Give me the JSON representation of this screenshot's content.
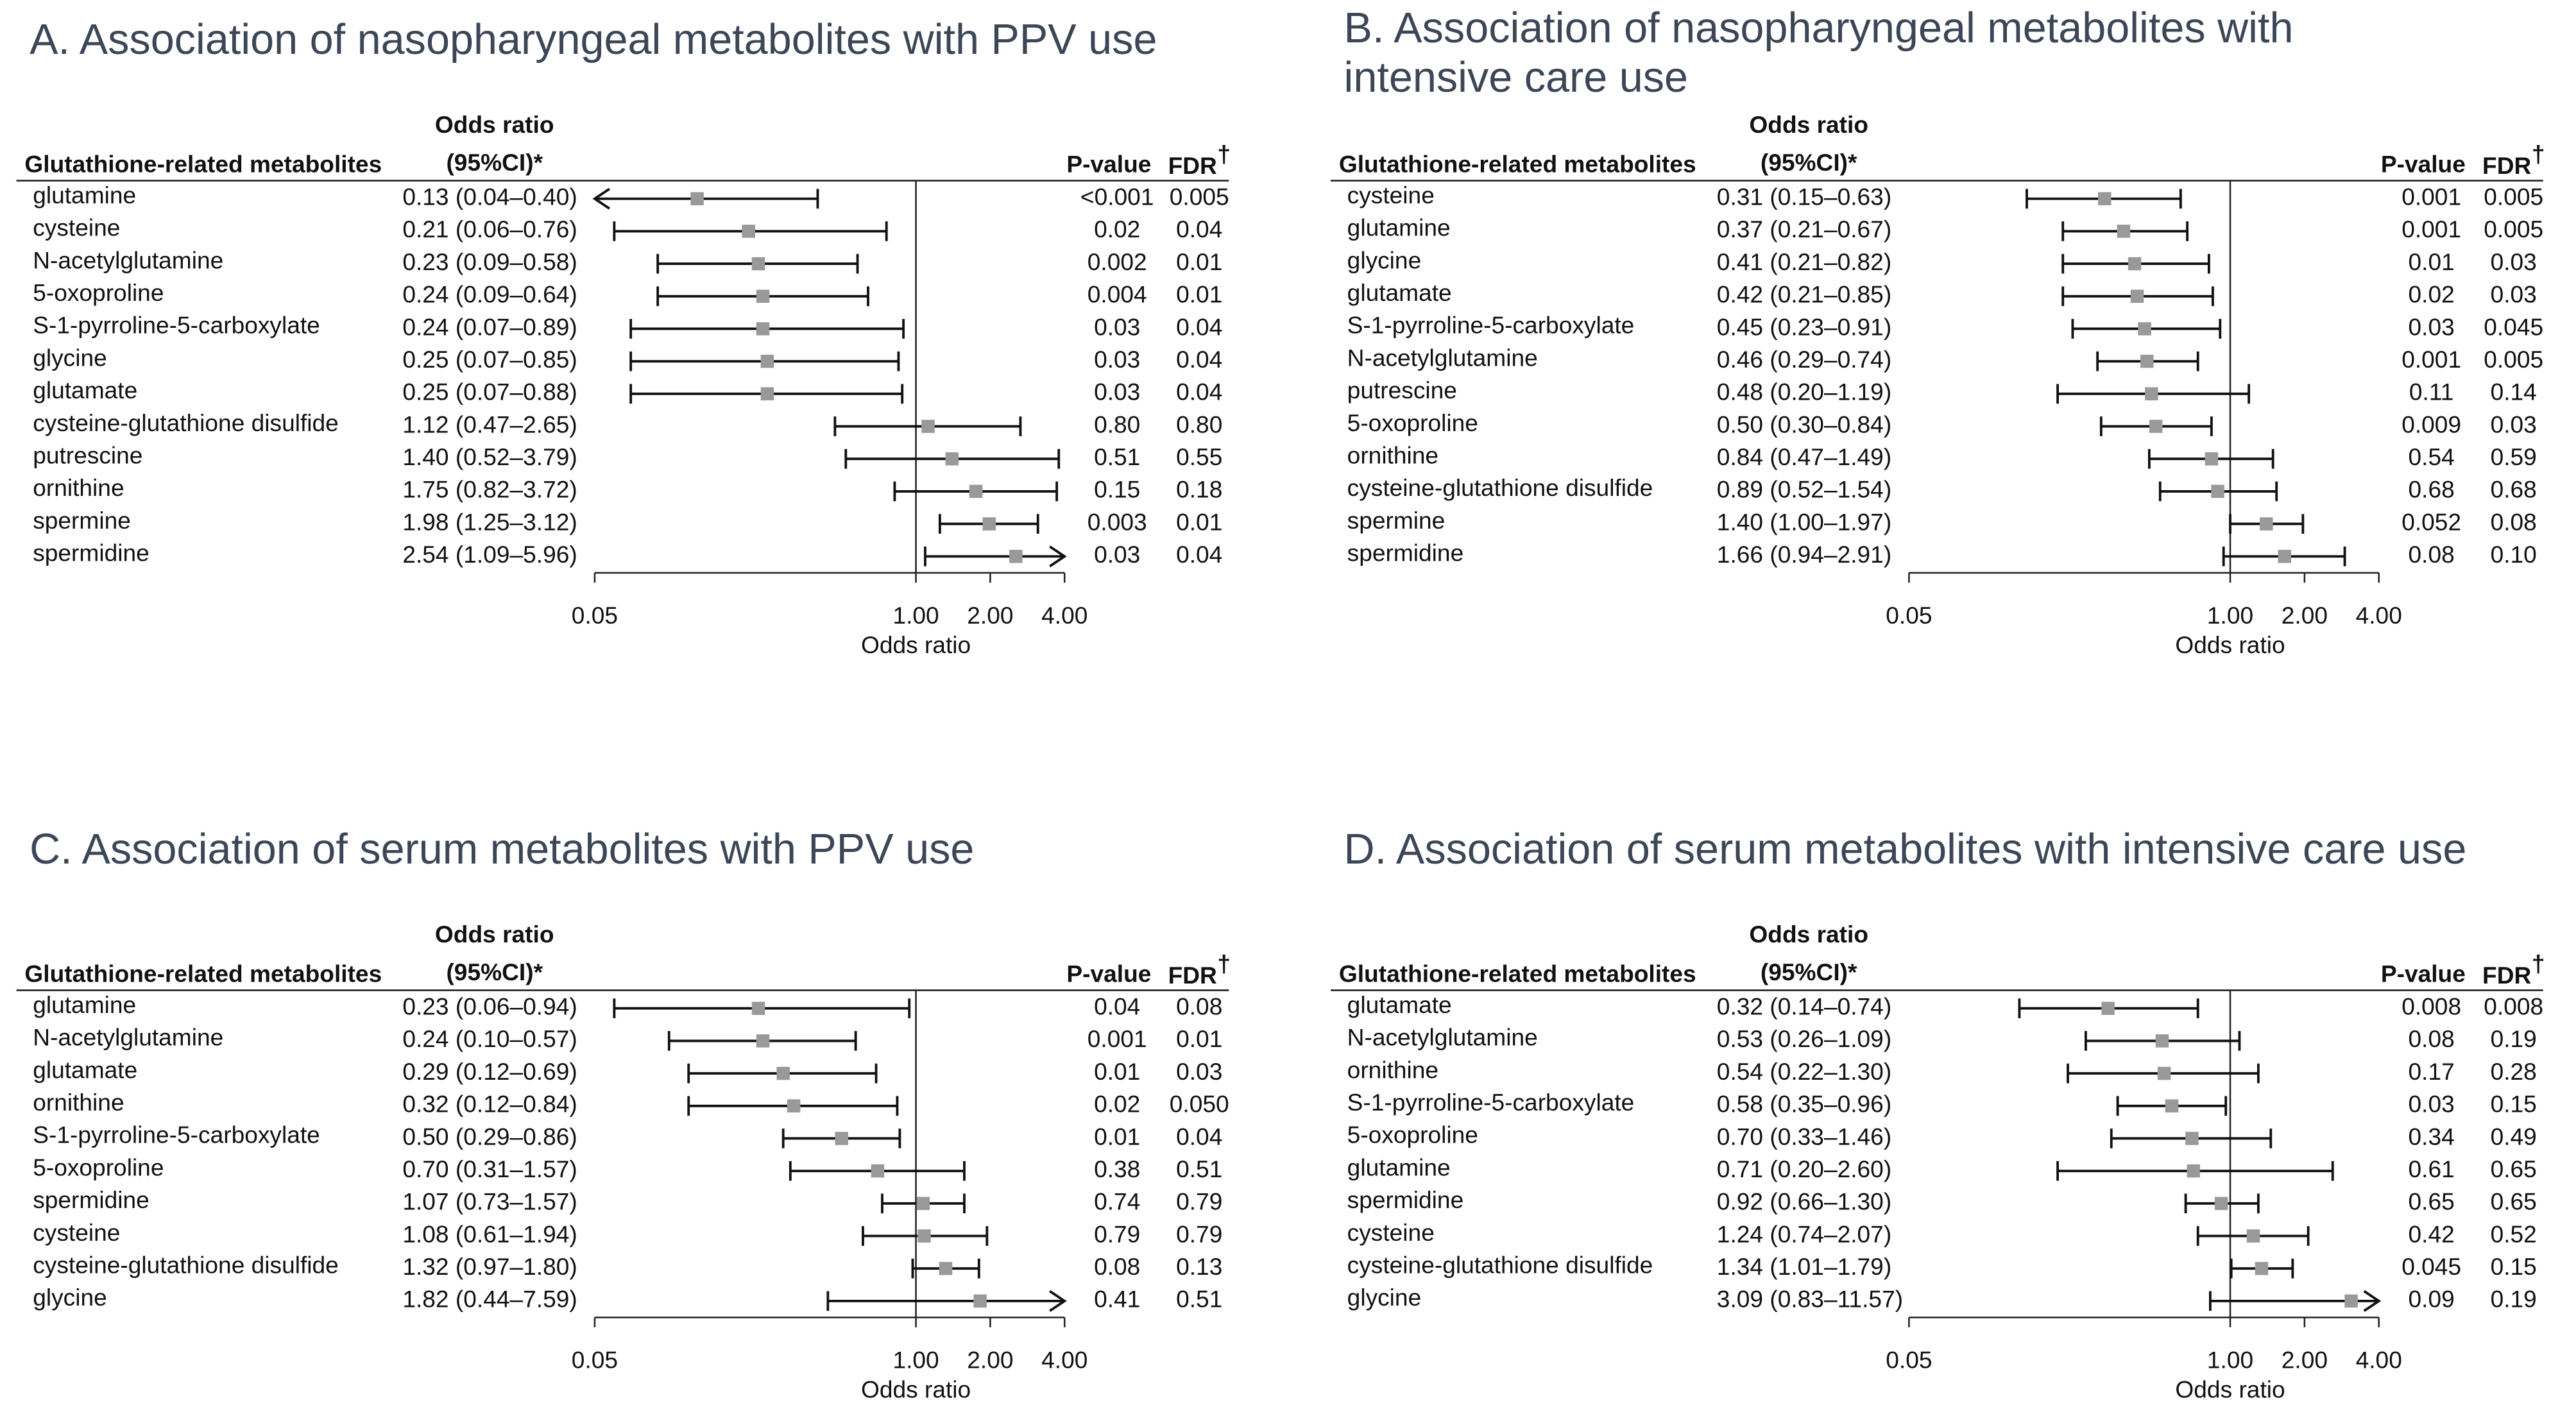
{
  "chart_data": [
    {
      "type": "forest",
      "title": [
        "A. Association of nasopharyngeal metabolites with PPV use"
      ],
      "name_header": "Glutathione-related metabolites",
      "or_header": "Odds ratio",
      "ci_header": "(95%CI)*",
      "p_header": "P-value",
      "fdr_header": "FDR",
      "fdr_mark": "†",
      "categories": [
        "glutamine",
        "cysteine",
        "N-acetylglutamine",
        "5-oxoproline",
        "S-1-pyrroline-5-carboxylate",
        "glycine",
        "glutamate",
        "cysteine-glutathione disulfide",
        "putrescine",
        "ornithine",
        "spermine",
        "spermidine"
      ],
      "values": [
        0.13,
        0.21,
        0.23,
        0.24,
        0.24,
        0.25,
        0.25,
        1.12,
        1.4,
        1.75,
        1.98,
        2.54
      ],
      "lower": [
        0.04,
        0.06,
        0.09,
        0.09,
        0.07,
        0.07,
        0.07,
        0.47,
        0.52,
        0.82,
        1.25,
        1.09
      ],
      "upper": [
        0.4,
        0.76,
        0.58,
        0.64,
        0.89,
        0.85,
        0.88,
        2.65,
        3.79,
        3.72,
        3.12,
        5.96
      ],
      "value_labels": [
        "0.13 (0.04–0.40)",
        "0.21 (0.06–0.76)",
        "0.23 (0.09–0.58)",
        "0.24 (0.09–0.64)",
        "0.24 (0.07–0.89)",
        "0.25 (0.07–0.85)",
        "0.25 (0.07–0.88)",
        "1.12 (0.47–2.65)",
        "1.40 (0.52–3.79)",
        "1.75 (0.82–3.72)",
        "1.98 (1.25–3.12)",
        "2.54 (1.09–5.96)"
      ],
      "p_values": [
        "<0.001",
        "0.02",
        "0.002",
        "0.004",
        "0.03",
        "0.03",
        "0.03",
        "0.80",
        "0.51",
        "0.15",
        "0.003",
        "0.03"
      ],
      "fdr": [
        "0.005",
        "0.04",
        "0.01",
        "0.01",
        "0.04",
        "0.04",
        "0.04",
        "0.80",
        "0.55",
        "0.18",
        "0.01",
        "0.04"
      ],
      "log_x": true,
      "xlim": [
        0.05,
        4
      ],
      "xticks": [
        0.05,
        {
          "value": 1,
          "label": "1.00"
        },
        {
          "value": 2,
          "label": "2.00"
        },
        {
          "value": 4,
          "label": "4.00"
        }
      ],
      "xlabel": "Odds ratio",
      "color": "#999999"
    },
    {
      "type": "forest",
      "title": [
        "B. Association of nasopharyngeal metabolites with",
        "intensive care use"
      ],
      "name_header": "Glutathione-related metabolites",
      "or_header": "Odds ratio",
      "ci_header": "(95%CI)*",
      "p_header": "P-value",
      "fdr_header": "FDR",
      "fdr_mark": "†",
      "categories": [
        "cysteine",
        "glutamine",
        "glycine",
        "glutamate",
        "S-1-pyrroline-5-carboxylate",
        "N-acetylglutamine",
        "putrescine",
        "5-oxoproline",
        "ornithine",
        "cysteine-glutathione disulfide",
        "spermine",
        "spermidine"
      ],
      "values": [
        0.31,
        0.37,
        0.41,
        0.42,
        0.45,
        0.46,
        0.48,
        0.5,
        0.84,
        0.89,
        1.4,
        1.66
      ],
      "lower": [
        0.15,
        0.21,
        0.21,
        0.21,
        0.23,
        0.29,
        0.2,
        0.3,
        0.47,
        0.52,
        1.0,
        0.94
      ],
      "upper": [
        0.63,
        0.67,
        0.82,
        0.85,
        0.91,
        0.74,
        1.19,
        0.84,
        1.49,
        1.54,
        1.97,
        2.91
      ],
      "value_labels": [
        "0.31 (0.15–0.63)",
        "0.37 (0.21–0.67)",
        "0.41 (0.21–0.82)",
        "0.42 (0.21–0.85)",
        "0.45 (0.23–0.91)",
        "0.46 (0.29–0.74)",
        "0.48 (0.20–1.19)",
        "0.50 (0.30–0.84)",
        "0.84 (0.47–1.49)",
        "0.89 (0.52–1.54)",
        "1.40 (1.00–1.97)",
        "1.66 (0.94–2.91)"
      ],
      "p_values": [
        "0.001",
        "0.001",
        "0.01",
        "0.02",
        "0.03",
        "0.001",
        "0.11",
        "0.009",
        "0.54",
        "0.68",
        "0.052",
        "0.08"
      ],
      "fdr": [
        "0.005",
        "0.005",
        "0.03",
        "0.03",
        "0.045",
        "0.005",
        "0.14",
        "0.03",
        "0.59",
        "0.68",
        "0.08",
        "0.10"
      ],
      "log_x": true,
      "xlim": [
        0.05,
        4
      ],
      "xticks": [
        0.05,
        {
          "value": 1,
          "label": "1.00"
        },
        {
          "value": 2,
          "label": "2.00"
        },
        {
          "value": 4,
          "label": "4.00"
        }
      ],
      "xlabel": "Odds ratio",
      "color": "#999999"
    },
    {
      "type": "forest",
      "title": [
        "C. Association of serum metabolites with PPV use"
      ],
      "name_header": "Glutathione-related metabolites",
      "or_header": "Odds ratio",
      "ci_header": "(95%CI)*",
      "p_header": "P-value",
      "fdr_header": "FDR",
      "fdr_mark": "†",
      "categories": [
        "glutamine",
        "N-acetylglutamine",
        "glutamate",
        "ornithine",
        "S-1-pyrroline-5-carboxylate",
        "5-oxoproline",
        "spermidine",
        "cysteine",
        "cysteine-glutathione disulfide",
        "glycine"
      ],
      "values": [
        0.23,
        0.24,
        0.29,
        0.32,
        0.5,
        0.7,
        1.07,
        1.08,
        1.32,
        1.82
      ],
      "lower": [
        0.06,
        0.1,
        0.12,
        0.12,
        0.29,
        0.31,
        0.73,
        0.61,
        0.97,
        0.44
      ],
      "upper": [
        0.94,
        0.57,
        0.69,
        0.84,
        0.86,
        1.57,
        1.57,
        1.94,
        1.8,
        7.59
      ],
      "value_labels": [
        "0.23 (0.06–0.94)",
        "0.24 (0.10–0.57)",
        "0.29 (0.12–0.69)",
        "0.32 (0.12–0.84)",
        "0.50 (0.29–0.86)",
        "0.70 (0.31–1.57)",
        "1.07 (0.73–1.57)",
        "1.08 (0.61–1.94)",
        "1.32 (0.97–1.80)",
        "1.82 (0.44–7.59)"
      ],
      "p_values": [
        "0.04",
        "0.001",
        "0.01",
        "0.02",
        "0.01",
        "0.38",
        "0.74",
        "0.79",
        "0.08",
        "0.41"
      ],
      "fdr": [
        "0.08",
        "0.01",
        "0.03",
        "0.050",
        "0.04",
        "0.51",
        "0.79",
        "0.79",
        "0.13",
        "0.51"
      ],
      "log_x": true,
      "xlim": [
        0.05,
        4
      ],
      "xticks": [
        0.05,
        {
          "value": 1,
          "label": "1.00"
        },
        {
          "value": 2,
          "label": "2.00"
        },
        {
          "value": 4,
          "label": "4.00"
        }
      ],
      "xlabel": "Odds ratio",
      "color": "#999999"
    },
    {
      "type": "forest",
      "title": [
        "D. Association of serum metabolites with intensive care use"
      ],
      "name_header": "Glutathione-related metabolites",
      "or_header": "Odds ratio",
      "ci_header": "(95%CI)*",
      "p_header": "P-value",
      "fdr_header": "FDR",
      "fdr_mark": "†",
      "categories": [
        "glutamate",
        "N-acetylglutamine",
        "ornithine",
        "S-1-pyrroline-5-carboxylate",
        "5-oxoproline",
        "glutamine",
        "spermidine",
        "cysteine",
        "cysteine-glutathione disulfide",
        "glycine"
      ],
      "values": [
        0.32,
        0.53,
        0.54,
        0.58,
        0.7,
        0.71,
        0.92,
        1.24,
        1.34,
        3.09
      ],
      "lower": [
        0.14,
        0.26,
        0.22,
        0.35,
        0.33,
        0.2,
        0.66,
        0.74,
        1.01,
        0.83
      ],
      "upper": [
        0.74,
        1.09,
        1.3,
        0.96,
        1.46,
        2.6,
        1.3,
        2.07,
        1.79,
        11.57
      ],
      "value_labels": [
        "0.32 (0.14–0.74)",
        "0.53 (0.26–1.09)",
        "0.54 (0.22–1.30)",
        "0.58 (0.35–0.96)",
        "0.70 (0.33–1.46)",
        "0.71 (0.20–2.60)",
        "0.92 (0.66–1.30)",
        "1.24 (0.74–2.07)",
        "1.34 (1.01–1.79)",
        "3.09 (0.83–11.57)"
      ],
      "p_values": [
        "0.008",
        "0.08",
        "0.17",
        "0.03",
        "0.34",
        "0.61",
        "0.65",
        "0.42",
        "0.045",
        "0.09"
      ],
      "fdr": [
        "0.008",
        "0.19",
        "0.28",
        "0.15",
        "0.49",
        "0.65",
        "0.65",
        "0.52",
        "0.15",
        "0.19"
      ],
      "log_x": true,
      "xlim": [
        0.05,
        4
      ],
      "xticks": [
        0.05,
        {
          "value": 1,
          "label": "1.00"
        },
        {
          "value": 2,
          "label": "2.00"
        },
        {
          "value": 4,
          "label": "4.00"
        }
      ],
      "xlabel": "Odds ratio",
      "color": "#999999"
    }
  ]
}
